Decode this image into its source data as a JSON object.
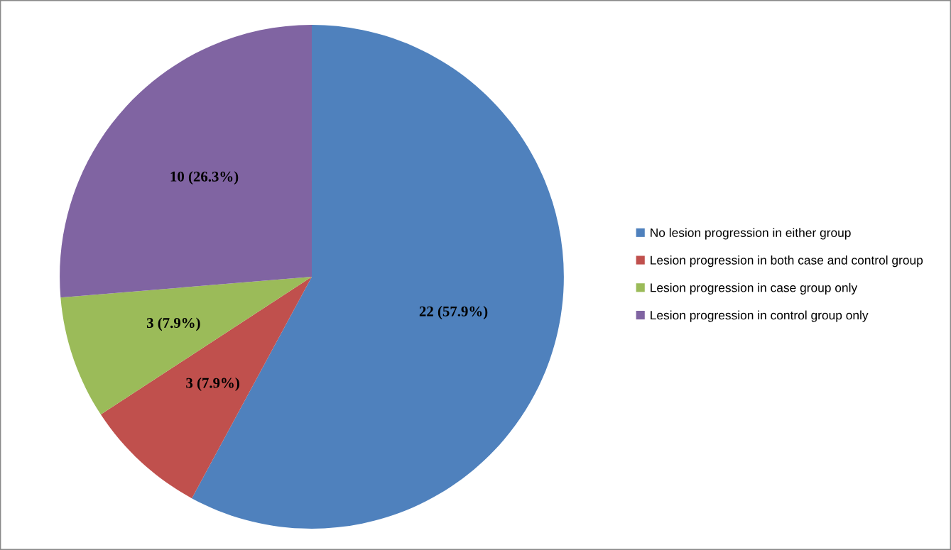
{
  "chart_data": {
    "type": "pie",
    "categories": [
      "No lesion progression in either group",
      "Lesion progression in both case and control group",
      "Lesion progression in case group only",
      "Lesion progression in control group only"
    ],
    "values": [
      22,
      3,
      3,
      10
    ],
    "colors": [
      "#4f81bd",
      "#c0504d",
      "#9bbb59",
      "#8064a2"
    ],
    "value_labels": [
      "22 (57.9%)",
      "3 (7.9%)",
      "3 (7.9%)",
      "10 (26.3%)"
    ],
    "legend": "right"
  }
}
